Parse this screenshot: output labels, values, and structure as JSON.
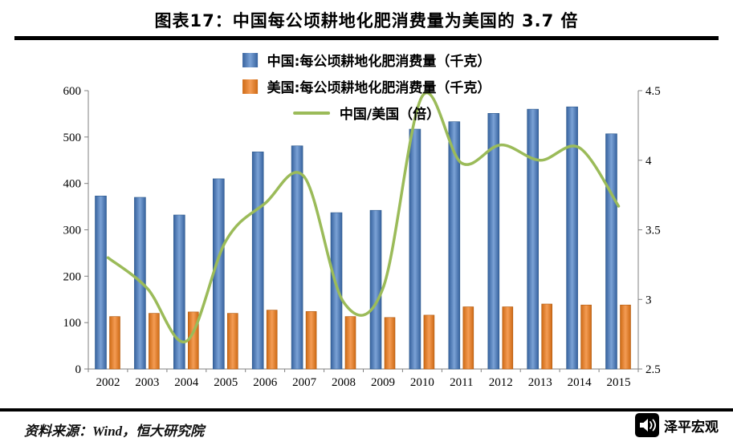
{
  "title": "图表17：中国每公顷耕地化肥消费量为美国的 3.7 倍",
  "footer": {
    "source": "资料来源：Wind，恒大研究院",
    "brand": "泽平宏观",
    "brand_icon": "speaker-icon"
  },
  "chart_data": {
    "type": "bar+line",
    "title": "中国每公顷耕地化肥消费量为美国的3.7倍",
    "categories": [
      2002,
      2003,
      2004,
      2005,
      2006,
      2007,
      2008,
      2009,
      2010,
      2011,
      2012,
      2013,
      2014,
      2015
    ],
    "series": [
      {
        "name": "中国:每公顷耕地化肥消费量（千克）",
        "type": "bar",
        "axis": "left",
        "color": "#4F81BD",
        "values": [
          373,
          370,
          332,
          410,
          468,
          481,
          337,
          342,
          517,
          533,
          551,
          560,
          565,
          507
        ]
      },
      {
        "name": "美国:每公顷耕地化肥消费量（千克）",
        "type": "bar",
        "axis": "left",
        "color": "#E97F2E",
        "values": [
          113,
          120,
          123,
          120,
          127,
          124,
          113,
          111,
          116,
          134,
          134,
          140,
          138,
          138
        ]
      },
      {
        "name": "中国/美国（倍）",
        "type": "line",
        "axis": "right",
        "color": "#9BBB59",
        "values": [
          3.3,
          3.08,
          2.7,
          3.42,
          3.69,
          3.88,
          2.98,
          3.08,
          4.46,
          3.98,
          4.11,
          4.0,
          4.09,
          3.67
        ]
      }
    ],
    "left_axis": {
      "min": 0,
      "max": 600,
      "step": 100,
      "tick_labels": [
        "0",
        "100",
        "200",
        "300",
        "400",
        "500",
        "600"
      ]
    },
    "right_axis": {
      "min": 2.5,
      "max": 4.5,
      "step": 0.5,
      "tick_labels": [
        "2.5",
        "3",
        "3.5",
        "4",
        "4.5"
      ]
    },
    "legend_position": "top-center",
    "grid": false
  }
}
